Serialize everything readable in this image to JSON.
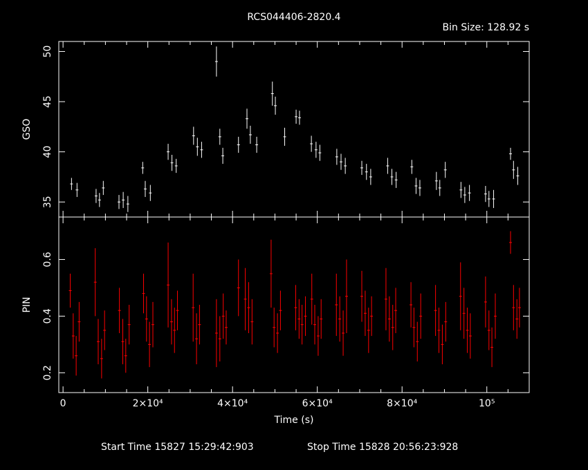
{
  "title": "RCS044406-2820.4",
  "bin_size": "Bin Size: 128.92 s",
  "footer": {
    "start": "Start Time 15827 15:29:42:903",
    "stop": "Stop Time 15828 20:56:23:928"
  },
  "colors": {
    "background": "#000000",
    "axes": "#ffffff",
    "gso": "#ffffff",
    "pin": "#ff0000"
  },
  "chart_data": [
    {
      "type": "scatter",
      "error_bars": "vertical",
      "ylabel": "GSO",
      "xlim": [
        -1000,
        110000
      ],
      "ylim": [
        33.5,
        51
      ],
      "yticks": [
        35,
        40,
        45,
        50
      ],
      "color": "white",
      "series": [
        {
          "points": [
            [
              2000,
              36.8,
              0.6
            ],
            [
              3300,
              36.2,
              0.7
            ],
            [
              7800,
              35.6,
              0.7
            ],
            [
              8600,
              35.2,
              0.7
            ],
            [
              9500,
              36.4,
              0.7
            ],
            [
              13200,
              35.0,
              0.7
            ],
            [
              14200,
              35.2,
              0.8
            ],
            [
              15300,
              34.8,
              0.8
            ],
            [
              18800,
              38.4,
              0.6
            ],
            [
              19400,
              36.3,
              0.8
            ],
            [
              20600,
              35.9,
              0.8
            ],
            [
              24800,
              40.0,
              0.8
            ],
            [
              25700,
              38.9,
              0.8
            ],
            [
              26700,
              38.6,
              0.7
            ],
            [
              30800,
              41.6,
              0.9
            ],
            [
              31700,
              40.5,
              0.9
            ],
            [
              32700,
              40.2,
              0.8
            ],
            [
              36200,
              49.0,
              1.5
            ],
            [
              37000,
              41.5,
              0.8
            ],
            [
              37700,
              39.6,
              0.8
            ],
            [
              41400,
              40.7,
              0.8
            ],
            [
              43400,
              43.3,
              1.0
            ],
            [
              44200,
              41.7,
              0.9
            ],
            [
              45700,
              40.7,
              0.8
            ],
            [
              49400,
              45.8,
              1.2
            ],
            [
              50100,
              44.6,
              0.9
            ],
            [
              52300,
              41.5,
              0.9
            ],
            [
              55000,
              43.5,
              0.7
            ],
            [
              55800,
              43.4,
              0.7
            ],
            [
              58600,
              40.8,
              0.8
            ],
            [
              59700,
              40.2,
              0.8
            ],
            [
              60600,
              39.9,
              0.8
            ],
            [
              64600,
              39.5,
              0.8
            ],
            [
              65600,
              39.0,
              0.8
            ],
            [
              66600,
              38.6,
              0.8
            ],
            [
              70500,
              38.4,
              0.7
            ],
            [
              71600,
              38.0,
              0.8
            ],
            [
              72600,
              37.5,
              0.8
            ],
            [
              76600,
              38.6,
              0.8
            ],
            [
              77600,
              37.5,
              0.8
            ],
            [
              78600,
              37.2,
              0.8
            ],
            [
              82300,
              38.5,
              0.7
            ],
            [
              83300,
              36.6,
              0.8
            ],
            [
              84200,
              36.4,
              0.8
            ],
            [
              88100,
              37.1,
              0.9
            ],
            [
              88900,
              36.4,
              0.8
            ],
            [
              90200,
              38.2,
              0.8
            ],
            [
              93900,
              36.2,
              0.8
            ],
            [
              94800,
              35.7,
              0.8
            ],
            [
              95900,
              35.9,
              0.8
            ],
            [
              99700,
              35.8,
              0.8
            ],
            [
              100500,
              35.3,
              0.8
            ],
            [
              101600,
              35.3,
              0.9
            ],
            [
              105600,
              39.8,
              0.6
            ],
            [
              106300,
              38.2,
              0.9
            ],
            [
              107300,
              37.6,
              0.9
            ]
          ]
        }
      ]
    },
    {
      "type": "scatter",
      "error_bars": "vertical",
      "ylabel": "PIN",
      "xlabel": "Time (s)",
      "xlim": [
        -1000,
        110000
      ],
      "ylim": [
        0.13,
        0.75
      ],
      "yticks": [
        0.2,
        0.4,
        0.6
      ],
      "ytick_labels": [
        "0.2",
        "0.4",
        "0.6"
      ],
      "xticks": [
        0,
        20000,
        40000,
        60000,
        80000,
        100000
      ],
      "xtick_labels": [
        "0",
        "2×10⁴",
        "4×10⁴",
        "6×10⁴",
        "8×10⁴",
        "10⁵"
      ],
      "color": "red",
      "series": [
        {
          "points": [
            [
              1700,
              0.49,
              0.06
            ],
            [
              2400,
              0.33,
              0.08
            ],
            [
              3100,
              0.26,
              0.07
            ],
            [
              3800,
              0.38,
              0.07
            ],
            [
              7600,
              0.52,
              0.12
            ],
            [
              8300,
              0.31,
              0.08
            ],
            [
              9100,
              0.25,
              0.07
            ],
            [
              9800,
              0.35,
              0.07
            ],
            [
              13300,
              0.42,
              0.08
            ],
            [
              14100,
              0.31,
              0.08
            ],
            [
              14800,
              0.26,
              0.06
            ],
            [
              15600,
              0.37,
              0.07
            ],
            [
              19000,
              0.48,
              0.07
            ],
            [
              19700,
              0.39,
              0.08
            ],
            [
              20400,
              0.3,
              0.08
            ],
            [
              21200,
              0.37,
              0.08
            ],
            [
              24800,
              0.51,
              0.15
            ],
            [
              25600,
              0.38,
              0.08
            ],
            [
              26300,
              0.35,
              0.08
            ],
            [
              27000,
              0.42,
              0.07
            ],
            [
              30700,
              0.43,
              0.12
            ],
            [
              31500,
              0.32,
              0.09
            ],
            [
              32200,
              0.37,
              0.07
            ],
            [
              36200,
              0.34,
              0.12
            ],
            [
              37000,
              0.32,
              0.08
            ],
            [
              37800,
              0.4,
              0.08
            ],
            [
              38500,
              0.36,
              0.06
            ],
            [
              41400,
              0.5,
              0.1
            ],
            [
              43000,
              0.46,
              0.11
            ],
            [
              43800,
              0.43,
              0.09
            ],
            [
              44600,
              0.38,
              0.08
            ],
            [
              49100,
              0.55,
              0.12
            ],
            [
              49800,
              0.36,
              0.07
            ],
            [
              50600,
              0.34,
              0.07
            ],
            [
              51300,
              0.42,
              0.07
            ],
            [
              54900,
              0.43,
              0.08
            ],
            [
              55700,
              0.39,
              0.07
            ],
            [
              56400,
              0.37,
              0.07
            ],
            [
              57200,
              0.4,
              0.07
            ],
            [
              58700,
              0.46,
              0.09
            ],
            [
              59400,
              0.37,
              0.07
            ],
            [
              60200,
              0.33,
              0.07
            ],
            [
              60900,
              0.39,
              0.07
            ],
            [
              64500,
              0.44,
              0.11
            ],
            [
              65300,
              0.39,
              0.08
            ],
            [
              66100,
              0.34,
              0.08
            ],
            [
              66900,
              0.47,
              0.13
            ],
            [
              70500,
              0.47,
              0.09
            ],
            [
              71300,
              0.41,
              0.08
            ],
            [
              72100,
              0.35,
              0.08
            ],
            [
              72800,
              0.4,
              0.07
            ],
            [
              76200,
              0.46,
              0.11
            ],
            [
              77000,
              0.39,
              0.08
            ],
            [
              77800,
              0.36,
              0.08
            ],
            [
              78500,
              0.42,
              0.08
            ],
            [
              82100,
              0.44,
              0.08
            ],
            [
              82800,
              0.36,
              0.07
            ],
            [
              83600,
              0.31,
              0.07
            ],
            [
              84400,
              0.4,
              0.08
            ],
            [
              87900,
              0.42,
              0.09
            ],
            [
              88700,
              0.35,
              0.08
            ],
            [
              89500,
              0.3,
              0.07
            ],
            [
              90300,
              0.38,
              0.07
            ],
            [
              93800,
              0.47,
              0.12
            ],
            [
              94600,
              0.41,
              0.09
            ],
            [
              95400,
              0.35,
              0.08
            ],
            [
              96100,
              0.33,
              0.08
            ],
            [
              99700,
              0.45,
              0.09
            ],
            [
              100500,
              0.35,
              0.07
            ],
            [
              101200,
              0.29,
              0.07
            ],
            [
              102000,
              0.4,
              0.08
            ],
            [
              105600,
              0.66,
              0.04
            ],
            [
              106300,
              0.43,
              0.08
            ],
            [
              107100,
              0.39,
              0.07
            ],
            [
              107700,
              0.43,
              0.07
            ]
          ]
        }
      ]
    }
  ]
}
